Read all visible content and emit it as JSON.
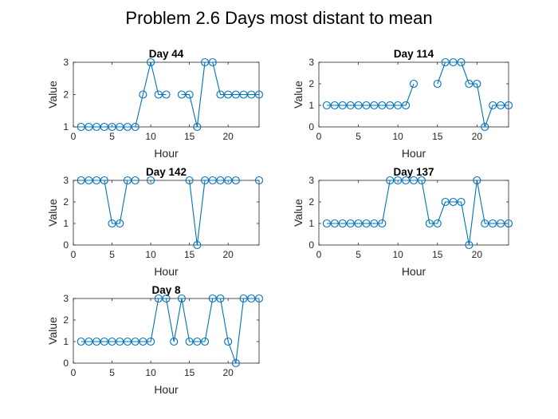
{
  "figure_title": "Problem 2.6 Days most distant to mean",
  "colors": {
    "series": "#0072bd",
    "axis": "#262626"
  },
  "chart_data": [
    {
      "type": "line",
      "title": "Day 44",
      "xlabel": "Hour",
      "ylabel": "Value",
      "xlim": [
        0,
        24
      ],
      "ylim": [
        1,
        3
      ],
      "xticks": [
        0,
        5,
        10,
        15,
        20
      ],
      "yticks": [
        1,
        2,
        3
      ],
      "grid": false,
      "marker": "circle",
      "x": [
        1,
        2,
        3,
        4,
        5,
        6,
        7,
        8,
        9,
        10,
        11,
        12,
        13,
        14,
        15,
        16,
        17,
        18,
        19,
        20,
        21,
        22,
        23,
        24
      ],
      "y": [
        1,
        1,
        1,
        1,
        1,
        1,
        1,
        1,
        2,
        3,
        2,
        2,
        null,
        2,
        2,
        1,
        3,
        3,
        2,
        2,
        2,
        2,
        2,
        2
      ]
    },
    {
      "type": "line",
      "title": "Day 114",
      "xlabel": "Hour",
      "ylabel": "Value",
      "xlim": [
        0,
        24
      ],
      "ylim": [
        0,
        3
      ],
      "xticks": [
        0,
        5,
        10,
        15,
        20
      ],
      "yticks": [
        0,
        1,
        2,
        3
      ],
      "grid": false,
      "marker": "circle",
      "x": [
        1,
        2,
        3,
        4,
        5,
        6,
        7,
        8,
        9,
        10,
        11,
        12,
        13,
        14,
        15,
        16,
        17,
        18,
        19,
        20,
        21,
        22,
        23,
        24
      ],
      "y": [
        1,
        1,
        1,
        1,
        1,
        1,
        1,
        1,
        1,
        1,
        1,
        2,
        null,
        null,
        2,
        3,
        3,
        3,
        2,
        2,
        0,
        1,
        1,
        1
      ]
    },
    {
      "type": "line",
      "title": "Day 142",
      "xlabel": "Hour",
      "ylabel": "Value",
      "xlim": [
        0,
        24
      ],
      "ylim": [
        0,
        3
      ],
      "xticks": [
        0,
        5,
        10,
        15,
        20
      ],
      "yticks": [
        0,
        1,
        2,
        3
      ],
      "grid": false,
      "marker": "circle",
      "x": [
        1,
        2,
        3,
        4,
        5,
        6,
        7,
        8,
        9,
        10,
        11,
        12,
        13,
        14,
        15,
        16,
        17,
        18,
        19,
        20,
        21,
        22,
        23,
        24
      ],
      "y": [
        3,
        3,
        3,
        3,
        1,
        1,
        3,
        3,
        null,
        3,
        null,
        null,
        null,
        null,
        3,
        0,
        3,
        3,
        3,
        3,
        3,
        null,
        null,
        3
      ]
    },
    {
      "type": "line",
      "title": "Day 137",
      "xlabel": "Hour",
      "ylabel": "Value",
      "xlim": [
        0,
        24
      ],
      "ylim": [
        0,
        3
      ],
      "xticks": [
        0,
        5,
        10,
        15,
        20
      ],
      "yticks": [
        0,
        1,
        2,
        3
      ],
      "grid": false,
      "marker": "circle",
      "x": [
        1,
        2,
        3,
        4,
        5,
        6,
        7,
        8,
        9,
        10,
        11,
        12,
        13,
        14,
        15,
        16,
        17,
        18,
        19,
        20,
        21,
        22,
        23,
        24
      ],
      "y": [
        1,
        1,
        1,
        1,
        1,
        1,
        1,
        1,
        3,
        3,
        3,
        3,
        3,
        1,
        1,
        2,
        2,
        2,
        0,
        3,
        1,
        1,
        1,
        1
      ]
    },
    {
      "type": "line",
      "title": "Day 8",
      "xlabel": "Hour",
      "ylabel": "Value",
      "xlim": [
        0,
        24
      ],
      "ylim": [
        0,
        3
      ],
      "xticks": [
        0,
        5,
        10,
        15,
        20
      ],
      "yticks": [
        0,
        1,
        2,
        3
      ],
      "grid": false,
      "marker": "circle",
      "x": [
        1,
        2,
        3,
        4,
        5,
        6,
        7,
        8,
        9,
        10,
        11,
        12,
        13,
        14,
        15,
        16,
        17,
        18,
        19,
        20,
        21,
        22,
        23,
        24
      ],
      "y": [
        1,
        1,
        1,
        1,
        1,
        1,
        1,
        1,
        1,
        1,
        3,
        3,
        1,
        3,
        1,
        1,
        1,
        3,
        3,
        1,
        0,
        3,
        3,
        3
      ]
    }
  ]
}
